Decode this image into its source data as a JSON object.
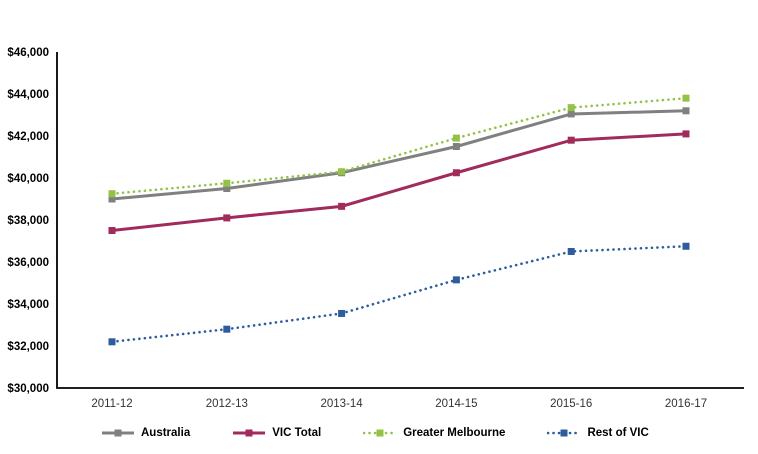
{
  "chart_data": {
    "type": "line",
    "title": "",
    "xlabel": "",
    "ylabel": "",
    "grid": false,
    "legend_position": "bottom",
    "categories": [
      "2011-12",
      "2012-13",
      "2013-14",
      "2014-15",
      "2015-16",
      "2016-17"
    ],
    "series": [
      {
        "name": "Australia",
        "color": "#808080",
        "line_style": "solid",
        "marker": "square",
        "values": [
          39000,
          39500,
          40250,
          41500,
          43050,
          43200
        ]
      },
      {
        "name": "VIC Total",
        "color": "#A02B5C",
        "line_style": "solid",
        "marker": "square",
        "values": [
          37500,
          38100,
          38650,
          40250,
          41800,
          42100
        ]
      },
      {
        "name": "Greater Melbourne",
        "color": "#92C347",
        "line_style": "dotted",
        "marker": "square",
        "values": [
          39250,
          39750,
          40300,
          41900,
          43350,
          43800
        ]
      },
      {
        "name": "Rest of VIC",
        "color": "#2E5C9C",
        "line_style": "dotted",
        "marker": "square",
        "values": [
          32200,
          32800,
          33550,
          35150,
          36500,
          36750
        ]
      }
    ],
    "y_axis": {
      "min": 30000,
      "max": 46000,
      "step": 2000,
      "tick_labels": [
        "$30,000",
        "$32,000",
        "$34,000",
        "$36,000",
        "$38,000",
        "$40,000",
        "$42,000",
        "$44,000",
        "$46,000"
      ]
    },
    "axis_color": "#000000"
  }
}
